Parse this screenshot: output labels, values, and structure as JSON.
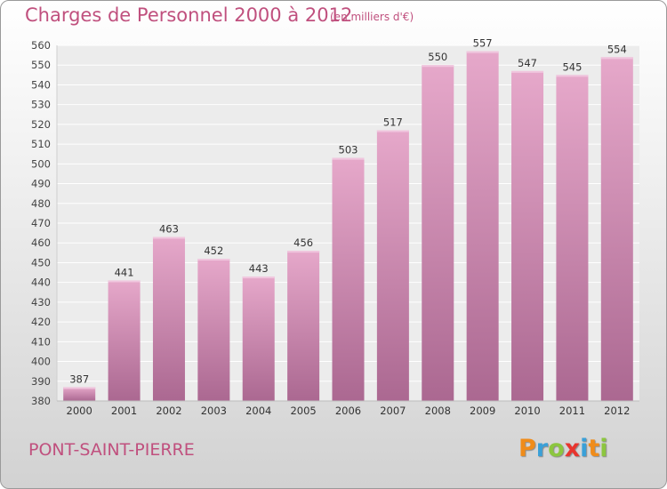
{
  "title": "Charges de Personnel 2000 à 2012",
  "unit": "(en milliers d'€)",
  "place": "PONT-SAINT-PIERRE",
  "logo": {
    "letters": [
      "P",
      "r",
      "o",
      "x",
      "i",
      "t",
      "i"
    ],
    "colors": [
      "#f08c1a",
      "#3aa0d8",
      "#8cc63f",
      "#e8352e",
      "#3aa0d8",
      "#f08c1a",
      "#8cc63f"
    ]
  },
  "colors": {
    "bar": "#d78fb5",
    "text": "#c0507e"
  },
  "chart_data": {
    "type": "bar",
    "categories": [
      "2000",
      "2001",
      "2002",
      "2003",
      "2004",
      "2005",
      "2006",
      "2007",
      "2008",
      "2009",
      "2010",
      "2011",
      "2012"
    ],
    "values": [
      387,
      441,
      463,
      452,
      443,
      456,
      503,
      517,
      550,
      557,
      547,
      545,
      554
    ],
    "ylim": [
      380,
      560
    ],
    "yticks": [
      380,
      390,
      400,
      410,
      420,
      430,
      440,
      450,
      460,
      470,
      480,
      490,
      500,
      510,
      520,
      530,
      540,
      550,
      560
    ],
    "grid": true,
    "legend": "none"
  }
}
